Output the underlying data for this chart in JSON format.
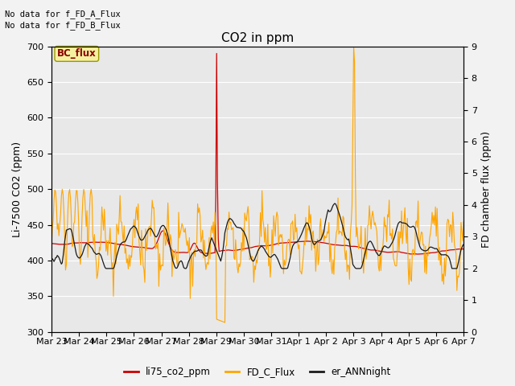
{
  "title": "CO2 in ppm",
  "ylabel_left": "Li-7500 CO2 (ppm)",
  "ylabel_right": "FD chamber flux (ppm)",
  "ylim_left": [
    300,
    700
  ],
  "ylim_right": [
    0.0,
    9.0
  ],
  "yticks_left": [
    300,
    350,
    400,
    450,
    500,
    550,
    600,
    650,
    700
  ],
  "yticks_right": [
    0.0,
    1.0,
    2.0,
    3.0,
    4.0,
    5.0,
    6.0,
    7.0,
    8.0,
    9.0
  ],
  "xtick_labels": [
    "Mar 23",
    "Mar 24",
    "Mar 25",
    "Mar 26",
    "Mar 27",
    "Mar 28",
    "Mar 29",
    "Mar 30",
    "Mar 31",
    "Apr 1",
    "Apr 2",
    "Apr 3",
    "Apr 4",
    "Apr 5",
    "Apr 6",
    "Apr 7"
  ],
  "annotation1": "No data for f_FD_A_Flux",
  "annotation2": "No data for f_FD_B_Flux",
  "bc_flux_label": "BC_flux",
  "legend_labels": [
    "li75_co2_ppm",
    "FD_C_Flux",
    "er_ANNnight"
  ],
  "line_colors": [
    "#cc0000",
    "#ffa500",
    "#1a1a1a"
  ],
  "bg_color": "#e8e8e8",
  "grid_color": "#ffffff",
  "title_fontsize": 11,
  "label_fontsize": 9,
  "tick_fontsize": 8,
  "n_points": 500
}
